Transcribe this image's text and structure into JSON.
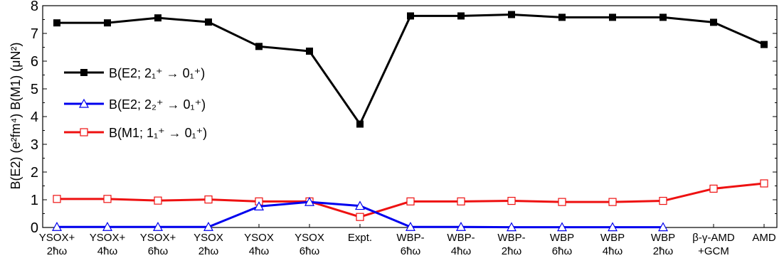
{
  "chart_data": {
    "type": "line",
    "categories": [
      [
        "YSOX+",
        "2ħω"
      ],
      [
        "YSOX+",
        "4ħω"
      ],
      [
        "YSOX+",
        "6ħω"
      ],
      [
        "YSOX",
        "2ħω"
      ],
      [
        "YSOX",
        "4ħω"
      ],
      [
        "YSOX",
        "6ħω"
      ],
      [
        "Expt."
      ],
      [
        "WBP-",
        "6ħω"
      ],
      [
        "WBP-",
        "4ħω"
      ],
      [
        "WBP-",
        "2ħω"
      ],
      [
        "WBP",
        "6ħω"
      ],
      [
        "WBP",
        "4ħω"
      ],
      [
        "WBP",
        "2ħω"
      ],
      [
        "β-γ-AMD",
        "+GCM"
      ],
      [
        "AMD"
      ]
    ],
    "ylabel": "B(E2) (e²fm⁴) B(M1) (μN²)",
    "ylim": [
      0,
      8
    ],
    "yticks": [
      "0",
      "1",
      "2",
      "3",
      "4",
      "5",
      "6",
      "7",
      "8"
    ],
    "legend_position": "left",
    "series": [
      {
        "name": "B(E2; 2₁⁺ → 0₁⁺)",
        "color": "#000000",
        "marker": "filled-square",
        "values": [
          7.38,
          7.38,
          7.56,
          7.41,
          6.53,
          6.36,
          3.73,
          7.63,
          7.63,
          7.68,
          7.58,
          7.58,
          7.58,
          7.4,
          6.6
        ]
      },
      {
        "name": "B(E2; 2₂⁺ → 0₁⁺)",
        "color": "#0000ee",
        "marker": "open-triangle",
        "values": [
          0.02,
          0.02,
          0.02,
          0.02,
          0.76,
          0.92,
          0.78,
          0.02,
          0.02,
          0.01,
          0.01,
          0.01,
          0.01,
          null,
          null
        ]
      },
      {
        "name": "B(M1; 1₁⁺ → 0₁⁺)",
        "color": "#ee1111",
        "marker": "open-square",
        "values": [
          1.03,
          1.03,
          0.97,
          1.01,
          0.94,
          0.94,
          0.38,
          0.94,
          0.94,
          0.96,
          0.92,
          0.92,
          0.96,
          1.4,
          1.59
        ]
      }
    ]
  }
}
